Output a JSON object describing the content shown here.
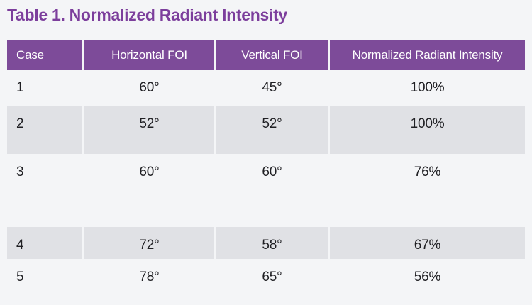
{
  "page": {
    "title": "Table 1. Normalized Radiant Intensity"
  },
  "table": {
    "headers": [
      "Case",
      "Horizontal FOI",
      "Vertical FOI",
      "Normalized Radiant Intensity"
    ],
    "rows": [
      {
        "case": "1",
        "horizontal_foi": "60°",
        "vertical_foi": "45°",
        "normalized_radiant_intensity": "100%"
      },
      {
        "case": "2",
        "horizontal_foi": "52°",
        "vertical_foi": "52°",
        "normalized_radiant_intensity": "100%"
      },
      {
        "case": "3",
        "horizontal_foi": "60°",
        "vertical_foi": "60°",
        "normalized_radiant_intensity": "76%"
      },
      {
        "case": "4",
        "horizontal_foi": "72°",
        "vertical_foi": "58°",
        "normalized_radiant_intensity": "67%"
      },
      {
        "case": "5",
        "horizontal_foi": "78°",
        "vertical_foi": "65°",
        "normalized_radiant_intensity": "56%"
      }
    ]
  },
  "colors": {
    "page_background": "#f4f5f7",
    "header_background": "#7d4b99",
    "stripe_row_background": "#e0e1e5",
    "title_text": "#7c3e9c",
    "body_text": "#202024",
    "header_text": "#ffffff"
  }
}
